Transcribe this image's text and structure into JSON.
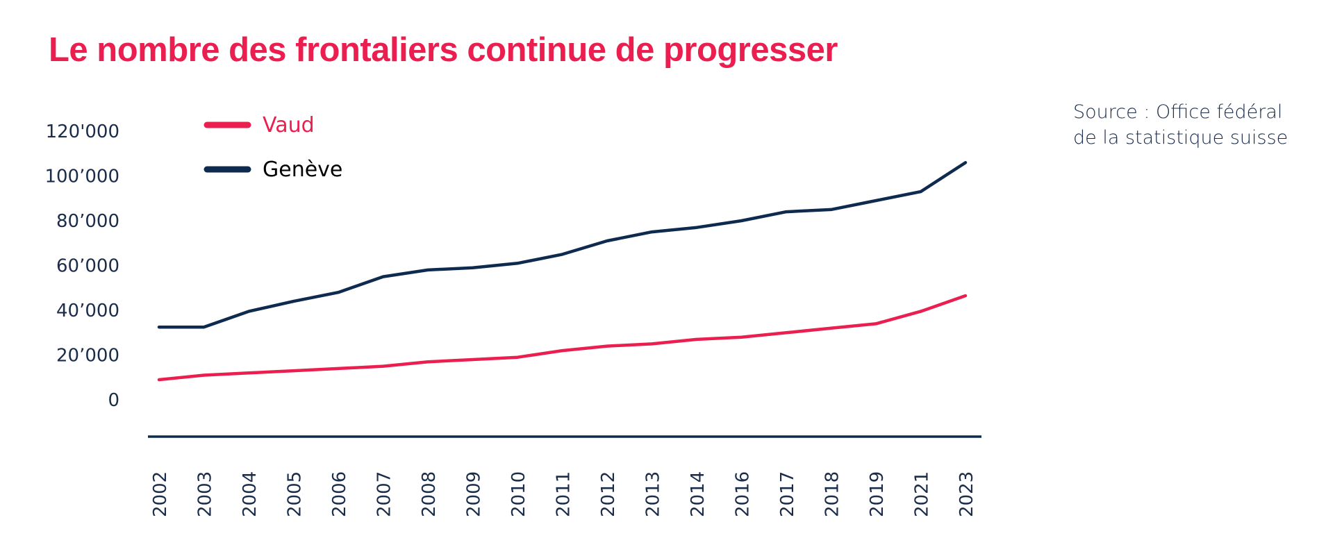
{
  "title": "Le nombre des frontaliers continue de progresser",
  "source": {
    "line1": "Source : Office fédéral",
    "line2": "de la statistique suisse"
  },
  "colors": {
    "vaud": "#ea1f4f",
    "geneve": "#0f2a4f",
    "axis": "#0f2a4f",
    "text": "#1a2c4a"
  },
  "chart_data": {
    "type": "line",
    "categories": [
      "2002",
      "2003",
      "2004",
      "2005",
      "2006",
      "2007",
      "2008",
      "2009",
      "2010",
      "2011",
      "2012",
      "2013",
      "2014",
      "2016",
      "2017",
      "2018",
      "2019",
      "2021",
      "2023"
    ],
    "y_tick_labels": [
      "0",
      "20’000",
      "40’000",
      "60’000",
      "80’000",
      "100’000",
      "120'000"
    ],
    "y_ticks": [
      0,
      20000,
      40000,
      60000,
      80000,
      100000,
      120000
    ],
    "ylim": [
      0,
      120000
    ],
    "grid": false,
    "legend_position": "top-left",
    "series": [
      {
        "name": "Vaud",
        "color": "#ea1f4f",
        "values": [
          9000,
          11000,
          12000,
          13000,
          14000,
          15000,
          17000,
          18000,
          19000,
          22000,
          24000,
          25000,
          27000,
          28000,
          30000,
          32000,
          34000,
          39500,
          46500
        ]
      },
      {
        "name": "Genève",
        "color": "#0f2a4f",
        "values": [
          32500,
          32500,
          39500,
          44000,
          48000,
          55000,
          58000,
          59000,
          61000,
          65000,
          71000,
          75000,
          77000,
          80000,
          84000,
          85000,
          89000,
          93000,
          106000
        ]
      }
    ]
  }
}
